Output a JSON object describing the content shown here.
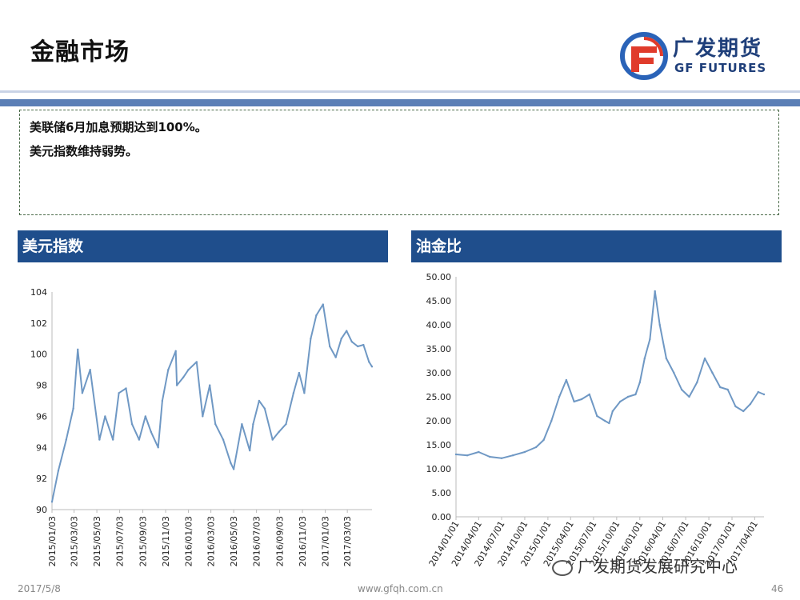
{
  "header": {
    "title": "金融市场",
    "logo_cn": "广发期货",
    "logo_en": "GF FUTURES"
  },
  "summary": {
    "lines": [
      "美联储6月加息预期达到100%。",
      "美元指数维持弱势。"
    ]
  },
  "colors": {
    "header_blue": "#1f4e8c",
    "line": "#6f98c4",
    "band": "#5b7fb6"
  },
  "chart_data": [
    {
      "type": "line",
      "title": "美元指数",
      "ylim": [
        90,
        104
      ],
      "yticks": [
        "90",
        "92",
        "94",
        "96",
        "98",
        "100",
        "102",
        "104"
      ],
      "xticks": [
        "2015/01/03",
        "2015/03/03",
        "2015/05/03",
        "2015/07/03",
        "2015/09/03",
        "2015/11/03",
        "2016/01/03",
        "2016/03/03",
        "2016/05/03",
        "2016/07/03",
        "2016/09/03",
        "2016/11/03",
        "2017/01/03",
        "2017/03/03"
      ],
      "x_range": [
        "2015/01/03",
        "2017/05/08"
      ],
      "grid": false,
      "series": [
        {
          "x": [
            "2015/01/03",
            "2015/01/20",
            "2015/02/10",
            "2015/03/01",
            "2015/03/13",
            "2015/03/25",
            "2015/04/15",
            "2015/05/10",
            "2015/05/25",
            "2015/06/15",
            "2015/07/01",
            "2015/07/20",
            "2015/08/05",
            "2015/08/24",
            "2015/09/10",
            "2015/09/25",
            "2015/10/14",
            "2015/10/25",
            "2015/11/10",
            "2015/11/30",
            "2015/12/03",
            "2015/12/20",
            "2016/01/03",
            "2016/01/25",
            "2016/02/10",
            "2016/02/29",
            "2016/03/15",
            "2016/04/05",
            "2016/04/25",
            "2016/05/03",
            "2016/05/25",
            "2016/06/15",
            "2016/06/24",
            "2016/07/10",
            "2016/07/25",
            "2016/08/15",
            "2016/09/01",
            "2016/09/20",
            "2016/10/10",
            "2016/10/25",
            "2016/11/08",
            "2016/11/25",
            "2016/12/10",
            "2016/12/28",
            "2017/01/15",
            "2017/01/31",
            "2017/02/15",
            "2017/03/01",
            "2017/03/15",
            "2017/03/31",
            "2017/04/15",
            "2017/04/30",
            "2017/05/08"
          ],
          "values": [
            90.5,
            92.5,
            94.5,
            96.5,
            100.3,
            97.5,
            99.0,
            94.5,
            96.0,
            94.5,
            97.5,
            97.8,
            95.5,
            94.5,
            96.0,
            95.0,
            94.0,
            97.0,
            99.0,
            100.2,
            98.0,
            98.5,
            99.0,
            99.5,
            96.0,
            98.0,
            95.5,
            94.5,
            93.0,
            92.6,
            95.5,
            93.8,
            95.5,
            97.0,
            96.5,
            94.5,
            95.0,
            95.5,
            97.5,
            98.8,
            97.5,
            101.0,
            102.5,
            103.2,
            100.5,
            99.8,
            101.0,
            101.5,
            100.8,
            100.5,
            100.6,
            99.5,
            99.2
          ]
        }
      ]
    },
    {
      "type": "line",
      "title": "油金比",
      "ylim": [
        0,
        50
      ],
      "yticks": [
        "0.00",
        "5.00",
        "10.00",
        "15.00",
        "20.00",
        "25.00",
        "30.00",
        "35.00",
        "40.00",
        "45.00",
        "50.00"
      ],
      "xticks": [
        "2014/01/01",
        "2014/04/01",
        "2014/07/01",
        "2014/10/01",
        "2015/01/01",
        "2015/04/01",
        "2015/07/01",
        "2015/10/01",
        "2016/01/01",
        "2016/04/01",
        "2016/07/01",
        "2016/10/01",
        "2017/01/01",
        "2017/04/01"
      ],
      "x_range": [
        "2014/01/01",
        "2017/05/08"
      ],
      "grid": false,
      "series": [
        {
          "x": [
            "2014/01/01",
            "2014/02/15",
            "2014/04/01",
            "2014/05/15",
            "2014/07/01",
            "2014/08/15",
            "2014/10/01",
            "2014/11/15",
            "2014/12/15",
            "2015/01/15",
            "2015/02/15",
            "2015/03/15",
            "2015/04/15",
            "2015/05/15",
            "2015/06/15",
            "2015/07/15",
            "2015/08/15",
            "2015/09/01",
            "2015/09/15",
            "2015/10/15",
            "2015/11/15",
            "2015/12/15",
            "2016/01/01",
            "2016/01/20",
            "2016/02/10",
            "2016/03/01",
            "2016/03/20",
            "2016/04/15",
            "2016/05/15",
            "2016/06/15",
            "2016/07/15",
            "2016/08/15",
            "2016/09/15",
            "2016/10/15",
            "2016/11/15",
            "2016/12/15",
            "2017/01/15",
            "2017/02/15",
            "2017/03/15",
            "2017/04/15",
            "2017/05/08"
          ],
          "values": [
            13.0,
            12.8,
            13.5,
            12.5,
            12.2,
            12.8,
            13.5,
            14.5,
            16.0,
            20.0,
            25.0,
            28.5,
            24.0,
            24.5,
            25.5,
            21.0,
            20.0,
            19.5,
            22.0,
            24.0,
            25.0,
            25.5,
            28.0,
            33.0,
            37.0,
            47.0,
            40.0,
            33.0,
            30.0,
            26.5,
            25.0,
            28.0,
            33.0,
            30.0,
            27.0,
            26.5,
            23.0,
            22.0,
            23.5,
            26.0,
            25.5
          ]
        }
      ]
    }
  ],
  "footer": {
    "date": "2017/5/8",
    "url": "www.gfqh.com.cn",
    "page": "46",
    "wechat": "广发期货发展研究中心"
  }
}
